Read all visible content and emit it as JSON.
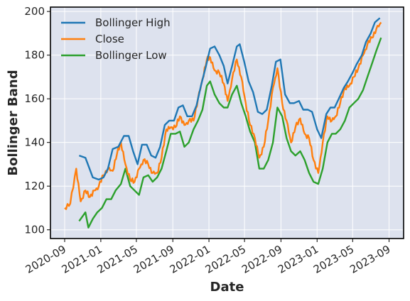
{
  "chart_data": {
    "type": "line",
    "title": "",
    "xlabel": "Date",
    "ylabel": "Bollinger Band",
    "x_ticks": [
      "2020-09",
      "2021-01",
      "2021-05",
      "2021-09",
      "2022-01",
      "2022-05",
      "2022-09",
      "2023-01",
      "2023-05",
      "2023-09"
    ],
    "y_ticks": [
      100,
      120,
      140,
      160,
      180,
      200
    ],
    "ylim": [
      96,
      202
    ],
    "xlim": [
      "2020-07-15",
      "2023-10-20"
    ],
    "grid": true,
    "legend_position": "top-left",
    "series": [
      {
        "name": "Bollinger High",
        "color": "#1f77b4",
        "points": [
          [
            "2020-10-20",
            134
          ],
          [
            "2020-11-10",
            133
          ],
          [
            "2020-12-05",
            124
          ],
          [
            "2020-12-25",
            123
          ],
          [
            "2021-01-10",
            124
          ],
          [
            "2021-01-25",
            128
          ],
          [
            "2021-02-10",
            137
          ],
          [
            "2021-03-01",
            138
          ],
          [
            "2021-03-20",
            143
          ],
          [
            "2021-04-05",
            143
          ],
          [
            "2021-04-20",
            136
          ],
          [
            "2021-05-05",
            130
          ],
          [
            "2021-05-20",
            139
          ],
          [
            "2021-06-05",
            139
          ],
          [
            "2021-06-20",
            134
          ],
          [
            "2021-07-05",
            133
          ],
          [
            "2021-07-20",
            138
          ],
          [
            "2021-08-05",
            148
          ],
          [
            "2021-08-20",
            150
          ],
          [
            "2021-09-05",
            150
          ],
          [
            "2021-09-20",
            156
          ],
          [
            "2021-10-05",
            157
          ],
          [
            "2021-10-20",
            152
          ],
          [
            "2021-11-05",
            152
          ],
          [
            "2021-11-20",
            157
          ],
          [
            "2021-12-05",
            166
          ],
          [
            "2021-12-20",
            174
          ],
          [
            "2022-01-05",
            183
          ],
          [
            "2022-01-20",
            184
          ],
          [
            "2022-02-05",
            180
          ],
          [
            "2022-02-20",
            175
          ],
          [
            "2022-03-05",
            167
          ],
          [
            "2022-03-20",
            175
          ],
          [
            "2022-04-05",
            184
          ],
          [
            "2022-04-15",
            185
          ],
          [
            "2022-04-30",
            177
          ],
          [
            "2022-05-15",
            168
          ],
          [
            "2022-05-30",
            163
          ],
          [
            "2022-06-15",
            154
          ],
          [
            "2022-06-30",
            153
          ],
          [
            "2022-07-15",
            155
          ],
          [
            "2022-08-01",
            166
          ],
          [
            "2022-08-15",
            177
          ],
          [
            "2022-08-30",
            178
          ],
          [
            "2022-09-15",
            162
          ],
          [
            "2022-10-01",
            158
          ],
          [
            "2022-10-15",
            158
          ],
          [
            "2022-11-01",
            159
          ],
          [
            "2022-11-15",
            155
          ],
          [
            "2022-12-01",
            155
          ],
          [
            "2022-12-15",
            154
          ],
          [
            "2023-01-01",
            146
          ],
          [
            "2023-01-15",
            142
          ],
          [
            "2023-02-01",
            153
          ],
          [
            "2023-02-15",
            156
          ],
          [
            "2023-03-01",
            156
          ],
          [
            "2023-03-15",
            160
          ],
          [
            "2023-04-01",
            165
          ],
          [
            "2023-04-15",
            168
          ],
          [
            "2023-05-01",
            172
          ],
          [
            "2023-05-15",
            176
          ],
          [
            "2023-06-01",
            180
          ],
          [
            "2023-06-15",
            186
          ],
          [
            "2023-07-01",
            190
          ],
          [
            "2023-07-15",
            195
          ],
          [
            "2023-08-01",
            197
          ]
        ]
      },
      {
        "name": "Close",
        "color": "#ff7f0e",
        "points": [
          [
            "2020-09-01",
            110
          ],
          [
            "2020-09-20",
            112
          ],
          [
            "2020-10-10",
            128
          ],
          [
            "2020-10-25",
            113
          ],
          [
            "2020-11-10",
            118
          ],
          [
            "2020-11-25",
            115
          ],
          [
            "2020-12-10",
            118
          ],
          [
            "2020-12-25",
            120
          ],
          [
            "2021-01-10",
            125
          ],
          [
            "2021-01-25",
            128
          ],
          [
            "2021-02-10",
            127
          ],
          [
            "2021-02-25",
            135
          ],
          [
            "2021-03-10",
            140
          ],
          [
            "2021-03-25",
            130
          ],
          [
            "2021-04-10",
            123
          ],
          [
            "2021-04-25",
            122
          ],
          [
            "2021-05-10",
            128
          ],
          [
            "2021-05-25",
            132
          ],
          [
            "2021-06-10",
            130
          ],
          [
            "2021-06-25",
            126
          ],
          [
            "2021-07-10",
            126
          ],
          [
            "2021-07-25",
            133
          ],
          [
            "2021-08-10",
            146
          ],
          [
            "2021-08-25",
            147
          ],
          [
            "2021-09-10",
            147
          ],
          [
            "2021-09-25",
            152
          ],
          [
            "2021-10-10",
            148
          ],
          [
            "2021-10-25",
            150
          ],
          [
            "2021-11-10",
            150
          ],
          [
            "2021-11-25",
            160
          ],
          [
            "2021-12-10",
            169
          ],
          [
            "2021-12-25",
            178
          ],
          [
            "2022-01-05",
            179
          ],
          [
            "2022-01-20",
            173
          ],
          [
            "2022-02-05",
            172
          ],
          [
            "2022-02-20",
            167
          ],
          [
            "2022-03-05",
            159
          ],
          [
            "2022-03-20",
            169
          ],
          [
            "2022-04-05",
            178
          ],
          [
            "2022-04-20",
            170
          ],
          [
            "2022-05-05",
            158
          ],
          [
            "2022-05-20",
            148
          ],
          [
            "2022-06-05",
            142
          ],
          [
            "2022-06-20",
            133
          ],
          [
            "2022-07-05",
            138
          ],
          [
            "2022-07-20",
            150
          ],
          [
            "2022-08-05",
            165
          ],
          [
            "2022-08-20",
            174
          ],
          [
            "2022-09-05",
            158
          ],
          [
            "2022-09-20",
            150
          ],
          [
            "2022-10-05",
            140
          ],
          [
            "2022-10-20",
            147
          ],
          [
            "2022-11-05",
            151
          ],
          [
            "2022-11-20",
            144
          ],
          [
            "2022-12-05",
            142
          ],
          [
            "2022-12-20",
            132
          ],
          [
            "2023-01-05",
            126
          ],
          [
            "2023-01-20",
            140
          ],
          [
            "2023-02-05",
            152
          ],
          [
            "2023-02-20",
            150
          ],
          [
            "2023-03-05",
            152
          ],
          [
            "2023-03-20",
            158
          ],
          [
            "2023-04-05",
            165
          ],
          [
            "2023-04-20",
            166
          ],
          [
            "2023-05-05",
            170
          ],
          [
            "2023-05-20",
            174
          ],
          [
            "2023-06-05",
            180
          ],
          [
            "2023-06-20",
            185
          ],
          [
            "2023-07-05",
            188
          ],
          [
            "2023-07-20",
            192
          ],
          [
            "2023-08-05",
            195
          ]
        ]
      },
      {
        "name": "Bollinger Low",
        "color": "#2ca02c",
        "points": [
          [
            "2020-10-20",
            104
          ],
          [
            "2020-11-10",
            108
          ],
          [
            "2020-11-20",
            101
          ],
          [
            "2020-12-05",
            105
          ],
          [
            "2020-12-20",
            108
          ],
          [
            "2021-01-05",
            110
          ],
          [
            "2021-01-20",
            114
          ],
          [
            "2021-02-05",
            114
          ],
          [
            "2021-02-20",
            118
          ],
          [
            "2021-03-10",
            121
          ],
          [
            "2021-03-25",
            128
          ],
          [
            "2021-04-10",
            120
          ],
          [
            "2021-04-25",
            118
          ],
          [
            "2021-05-10",
            116
          ],
          [
            "2021-05-25",
            124
          ],
          [
            "2021-06-10",
            125
          ],
          [
            "2021-06-25",
            122
          ],
          [
            "2021-07-10",
            124
          ],
          [
            "2021-07-25",
            128
          ],
          [
            "2021-08-10",
            136
          ],
          [
            "2021-08-25",
            144
          ],
          [
            "2021-09-10",
            144
          ],
          [
            "2021-09-25",
            145
          ],
          [
            "2021-10-10",
            138
          ],
          [
            "2021-10-25",
            140
          ],
          [
            "2021-11-10",
            146
          ],
          [
            "2021-11-25",
            150
          ],
          [
            "2021-12-10",
            155
          ],
          [
            "2021-12-25",
            166
          ],
          [
            "2022-01-05",
            168
          ],
          [
            "2022-01-20",
            162
          ],
          [
            "2022-02-05",
            158
          ],
          [
            "2022-02-20",
            156
          ],
          [
            "2022-03-05",
            156
          ],
          [
            "2022-03-20",
            162
          ],
          [
            "2022-04-05",
            166
          ],
          [
            "2022-04-20",
            158
          ],
          [
            "2022-05-05",
            152
          ],
          [
            "2022-05-20",
            145
          ],
          [
            "2022-06-05",
            140
          ],
          [
            "2022-06-20",
            128
          ],
          [
            "2022-07-05",
            128
          ],
          [
            "2022-07-20",
            132
          ],
          [
            "2022-08-05",
            140
          ],
          [
            "2022-08-20",
            156
          ],
          [
            "2022-09-05",
            152
          ],
          [
            "2022-09-20",
            142
          ],
          [
            "2022-10-05",
            136
          ],
          [
            "2022-10-20",
            134
          ],
          [
            "2022-11-05",
            136
          ],
          [
            "2022-11-20",
            132
          ],
          [
            "2022-12-05",
            126
          ],
          [
            "2022-12-20",
            122
          ],
          [
            "2023-01-05",
            121
          ],
          [
            "2023-01-20",
            128
          ],
          [
            "2023-02-05",
            140
          ],
          [
            "2023-02-20",
            144
          ],
          [
            "2023-03-05",
            144
          ],
          [
            "2023-03-20",
            146
          ],
          [
            "2023-04-05",
            150
          ],
          [
            "2023-04-20",
            156
          ],
          [
            "2023-05-05",
            158
          ],
          [
            "2023-05-20",
            160
          ],
          [
            "2023-06-05",
            164
          ],
          [
            "2023-06-20",
            170
          ],
          [
            "2023-07-05",
            176
          ],
          [
            "2023-07-20",
            182
          ],
          [
            "2023-08-05",
            188
          ]
        ]
      }
    ]
  },
  "colors": {
    "plot_background": "#dde2ee",
    "grid": "#ffffff",
    "text": "#262626"
  }
}
